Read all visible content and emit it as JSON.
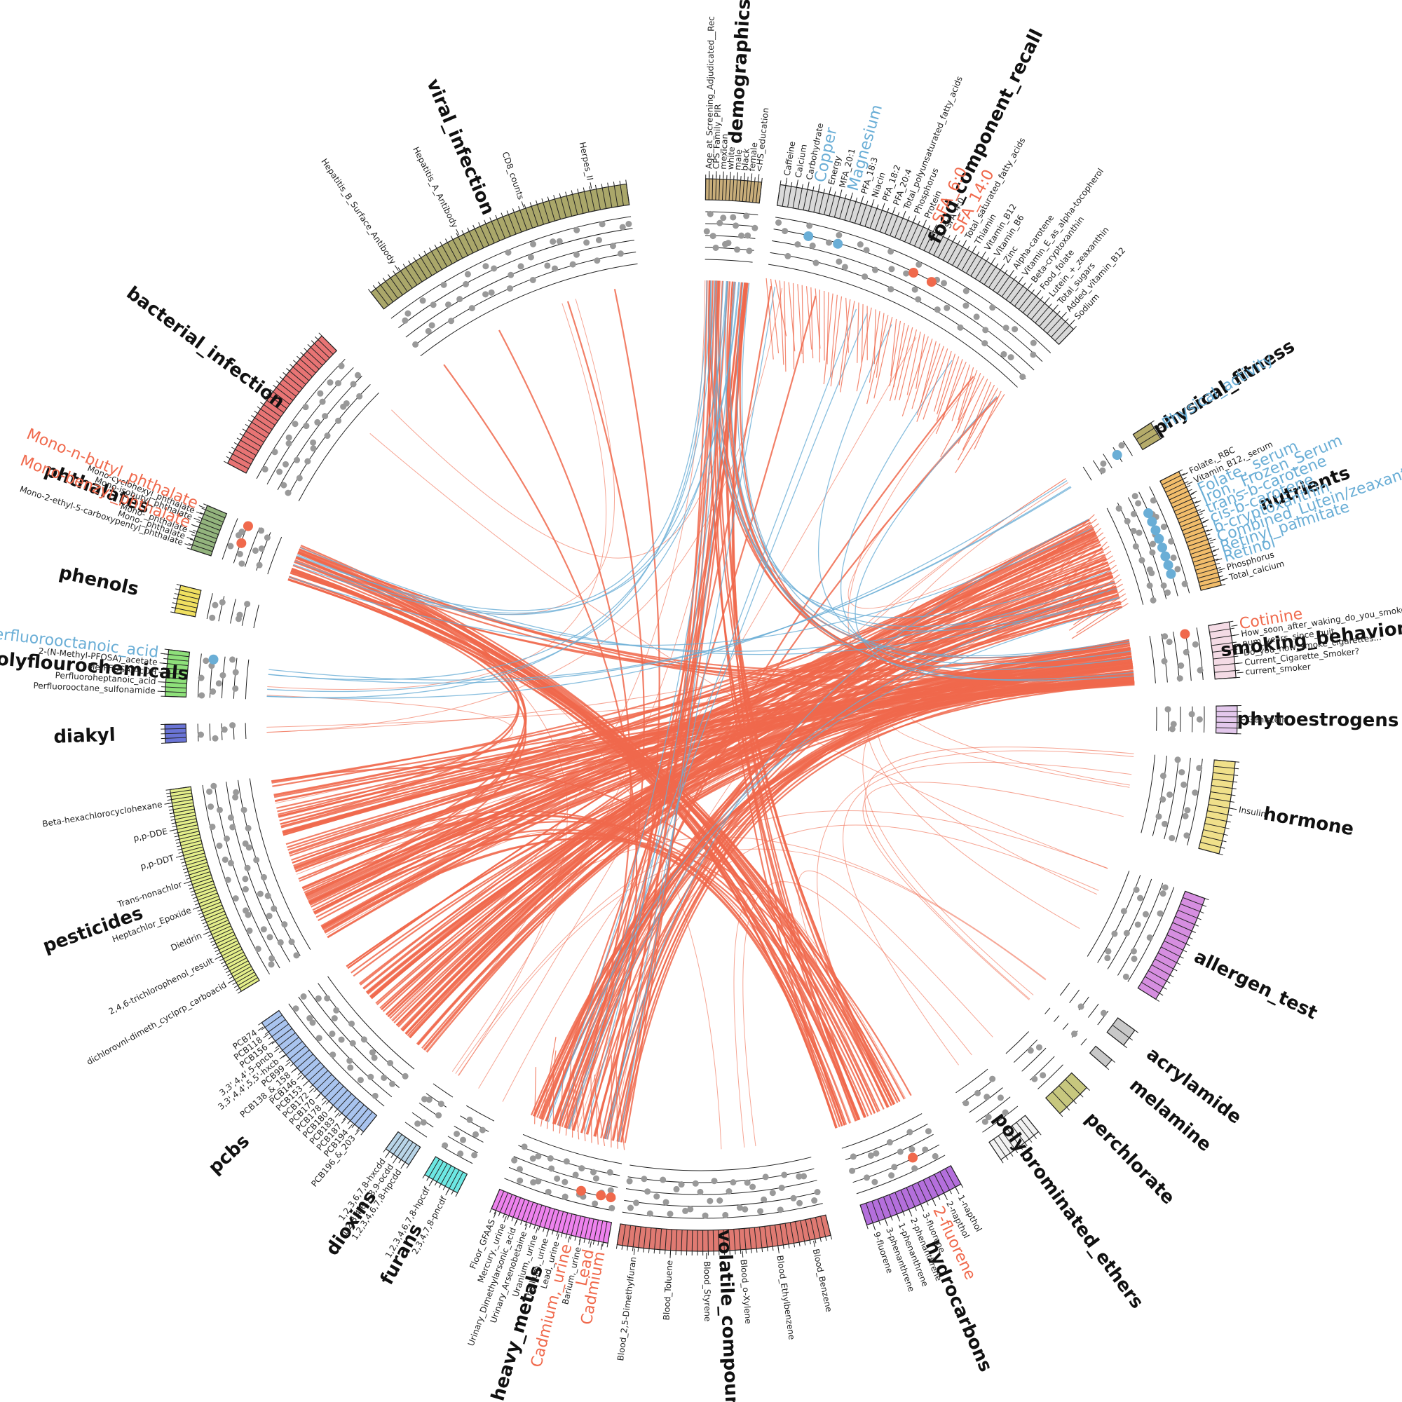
{
  "colors": {
    "positive": "#f0694c",
    "negative": "#6aaed6",
    "dot": "#999999"
  },
  "groups": [
    {
      "name": "demographics",
      "color": "#c9ae7a",
      "ticks": 16,
      "variables": [
        {
          "label": "Age_at_Screening_Adjudicated__Rec"
        },
        {
          "label": "CPS_Family_PIR"
        },
        {
          "label": "mexican"
        },
        {
          "label": "white"
        },
        {
          "label": "male"
        },
        {
          "label": "black"
        },
        {
          "label": "female"
        },
        {
          "label": "<HS_education"
        }
      ]
    },
    {
      "name": "food_component_recall",
      "color": "#d9d9d9",
      "ticks": 60,
      "variables": [
        {
          "label": "Caffeine"
        },
        {
          "label": "Calcium"
        },
        {
          "label": "Carbohydrate"
        },
        {
          "label": "Copper",
          "hl": "blue"
        },
        {
          "label": "Energy"
        },
        {
          "label": "MFA_20:1"
        },
        {
          "label": "Magnesium",
          "hl": "blue"
        },
        {
          "label": "PFA_18:3"
        },
        {
          "label": "Niacin"
        },
        {
          "label": "PFA_18:2"
        },
        {
          "label": "PFA_20:4"
        },
        {
          "label": "Total_polyunsaturated_fatty_acids"
        },
        {
          "label": "Phosphorus"
        },
        {
          "label": "Protein"
        },
        {
          "label": "SFA_6:0",
          "hl": "red"
        },
        {
          "label": "SFA_4:0"
        },
        {
          "label": "SFA_14:0",
          "hl": "red"
        },
        {
          "label": "Total_saturated_fatty_acids"
        },
        {
          "label": "Thiamin"
        },
        {
          "label": "Vitamin_B12"
        },
        {
          "label": "Vitamin_B6"
        },
        {
          "label": "Zinc"
        },
        {
          "label": "Alpha-carotene"
        },
        {
          "label": "Vitamin_E_as_alpha-tocopherol"
        },
        {
          "label": "Beta-cryptoxanthin"
        },
        {
          "label": "Food_folate"
        },
        {
          "label": "Lutein_+_zeaxanthin"
        },
        {
          "label": "Total_sugars"
        },
        {
          "label": "Added_vitamin_B12"
        },
        {
          "label": "Sodium"
        }
      ]
    },
    {
      "name": "physical_fitness",
      "color": "#b5ab6a",
      "ticks": 3,
      "variables": [
        {
          "label": "Physical_activity",
          "hl": "blue"
        }
      ]
    },
    {
      "name": "nutrients",
      "color": "#f2bd6b",
      "ticks": 28,
      "variables": [
        {
          "label": "Folate,_RBC"
        },
        {
          "label": "Vitamin_B12,_serum"
        },
        {
          "label": "Folate,_serum",
          "hl": "blue"
        },
        {
          "label": "Iron,_Frozen_Serum",
          "hl": "blue"
        },
        {
          "label": "trans-b-carotene",
          "hl": "blue"
        },
        {
          "label": "cis-b-carotene",
          "hl": "blue"
        },
        {
          "label": "b-cryptoxanthin",
          "hl": "blue"
        },
        {
          "label": "Combined_Lutein/zeaxanthin",
          "hl": "blue"
        },
        {
          "label": "Retinyl_palmitate",
          "hl": "blue"
        },
        {
          "label": "Retinol",
          "hl": "blue"
        },
        {
          "label": "Phosphorus"
        },
        {
          "label": "Total_calcium"
        }
      ]
    },
    {
      "name": "smoking_behavior",
      "color": "#f4dbe5",
      "ticks": 8,
      "variables": [
        {
          "label": "Cotinine",
          "hl": "red"
        },
        {
          "label": "How_soon_after_waking_do_you_smoke"
        },
        {
          "label": "num_years_since_quit"
        },
        {
          "label": "Do_you_now_smoke_cigarettes..."
        },
        {
          "label": "Current_Cigarette_Smoker?"
        },
        {
          "label": "current_smoker"
        }
      ]
    },
    {
      "name": "phytoestrogens",
      "color": "#e3c8ec",
      "ticks": 5,
      "variables": [
        {
          "label": "Genistein"
        }
      ]
    },
    {
      "name": "hormone",
      "color": "#f0e08a",
      "ticks": 14,
      "variables": [
        {
          "label": "Insulin"
        }
      ]
    },
    {
      "name": "allergen_test",
      "color": "#d68ee0",
      "ticks": 16,
      "variables": []
    },
    {
      "name": "acrylamide",
      "color": "#c8c8c8",
      "ticks": 2,
      "variables": []
    },
    {
      "name": "melamine",
      "color": "#c8c8c8",
      "ticks": 1,
      "variables": []
    },
    {
      "name": "perchlorate",
      "color": "#c7c77e",
      "ticks": 4,
      "variables": []
    },
    {
      "name": "polybrominated_ethers",
      "color": "#f2f2f2",
      "ticks": 8,
      "variables": []
    },
    {
      "name": "hydrocarbons",
      "color": "#b46fdc",
      "ticks": 16,
      "variables": [
        {
          "label": "1-napthol"
        },
        {
          "label": "2-napthol"
        },
        {
          "label": "2-fluorene",
          "hl": "red"
        },
        {
          "label": "3-fluorene"
        },
        {
          "label": "2-phenanthrene"
        },
        {
          "label": "1-phenanthrene"
        },
        {
          "label": "3-phenanthrene"
        },
        {
          "label": "9-fluorene"
        }
      ]
    },
    {
      "name": "volatile_compounds",
      "color": "#e07a72",
      "ticks": 40,
      "variables": [
        {
          "label": "Blood_Benzene"
        },
        {
          "label": "Blood_Ethylbenzene"
        },
        {
          "label": "Blood_o-Xylene"
        },
        {
          "label": "Blood_Styrene"
        },
        {
          "label": "Blood_Toluene"
        },
        {
          "label": "Blood_2,5-Dimethylfuran"
        }
      ]
    },
    {
      "name": "heavy_metals",
      "color": "#ee82ee",
      "ticks": 26,
      "variables": [
        {
          "label": "Cadmium",
          "hl": "red"
        },
        {
          "label": "Lead",
          "hl": "red"
        },
        {
          "label": "Barium,_urine"
        },
        {
          "label": "Cadmium,_urine",
          "hl": "red"
        },
        {
          "label": "Lead,_urine"
        },
        {
          "label": "Thallium,_urine"
        },
        {
          "label": "Uranium,_urine"
        },
        {
          "label": "Urinary_Arsenobetaine"
        },
        {
          "label": "Urinary_Dimethylarsonic_acid"
        },
        {
          "label": "Mercury,_urine"
        },
        {
          "label": "Floor_GFAAS"
        }
      ]
    },
    {
      "name": "furans",
      "color": "#6de8e3",
      "ticks": 8,
      "variables": [
        {
          "label": "2,3,4,7,8-pncdf"
        },
        {
          "label": "1,2,3,4,6,7,8-hpcdf"
        }
      ]
    },
    {
      "name": "dioxins",
      "color": "#b9d5e8",
      "ticks": 6,
      "variables": [
        {
          "label": "1,2,3,4,6,7,8-hpcdd"
        },
        {
          "label": "1,2,3,4,6,7,8,9-ocdd"
        },
        {
          "label": "1,2,3,6,7,8-hxcdd"
        }
      ]
    },
    {
      "name": "pcbs",
      "color": "#a9c4ef",
      "ticks": 26,
      "variables": [
        {
          "label": "PCB196_&_203"
        },
        {
          "label": "PCB194"
        },
        {
          "label": "PCB187"
        },
        {
          "label": "PCB183"
        },
        {
          "label": "PCB180"
        },
        {
          "label": "PCB178"
        },
        {
          "label": "PCB170"
        },
        {
          "label": "PCB172"
        },
        {
          "label": "PCB153"
        },
        {
          "label": "PCB146"
        },
        {
          "label": "PCB138_&_158"
        },
        {
          "label": "PCB99"
        },
        {
          "label": "3,3',4,4',5,5'-hxcb"
        },
        {
          "label": "3,3',4,4',5-pncb"
        },
        {
          "label": "PCB156"
        },
        {
          "label": "PCB118"
        },
        {
          "label": "PCB74"
        }
      ]
    },
    {
      "name": "pesticides",
      "color": "#e4ef8a",
      "ticks": 64,
      "variables": [
        {
          "label": "dichlorovnl-dimeth_cyclprp_carboacid"
        },
        {
          "label": "2,4,6-trichlorophenol_result"
        },
        {
          "label": "Dieldrin"
        },
        {
          "label": "Heptachlor_Epoxide"
        },
        {
          "label": "Trans-nonachlor"
        },
        {
          "label": "p,p-DDT"
        },
        {
          "label": "p,p-DDE"
        },
        {
          "label": "Beta-hexachlorocyclohexane"
        }
      ]
    },
    {
      "name": "diakyl",
      "color": "#6a74d6",
      "ticks": 4,
      "variables": []
    },
    {
      "name": "polyflourochemicals",
      "color": "#8ee07a",
      "ticks": 10,
      "variables": [
        {
          "label": "Perfluorooctane_sulfonamide"
        },
        {
          "label": "Perfluoroheptanoic_acid"
        },
        {
          "label": "Me-PFOSA-AcOH"
        },
        {
          "label": "2-(N-Methyl-PFOSA)_acetate"
        },
        {
          "label": "Perfluorooctanoic_acid",
          "hl": "blue"
        }
      ]
    },
    {
      "name": "phenols",
      "color": "#f0e060",
      "ticks": 6,
      "variables": []
    },
    {
      "name": "phthalates",
      "color": "#93b47d",
      "ticks": 10,
      "variables": [
        {
          "label": "Mono-2-ethyl-5-carboxypentyl_phthalate"
        },
        {
          "label": "Mono-_phthalate"
        },
        {
          "label": "Mono-_phthalate"
        },
        {
          "label": "Mono-benzyl_phthalate",
          "hl": "red"
        },
        {
          "label": "Mono-isobutyl_phthalate"
        },
        {
          "label": "Mono-cyclohexyl_phthalate"
        },
        {
          "label": "Mono-n-butyl_phthalate",
          "hl": "red"
        }
      ]
    },
    {
      "name": "bacterial_infection",
      "color": "#e87474",
      "ticks": 30,
      "variables": []
    },
    {
      "name": "viral_infection",
      "color": "#aaa76a",
      "ticks": 46,
      "variables": [
        {
          "label": "Hepatitis_B_Surface_Antibody"
        },
        {
          "label": "Hepatitis_A_Antibody"
        },
        {
          "label": "CD8_counts"
        },
        {
          "label": "Herpes_II"
        }
      ]
    }
  ]
}
